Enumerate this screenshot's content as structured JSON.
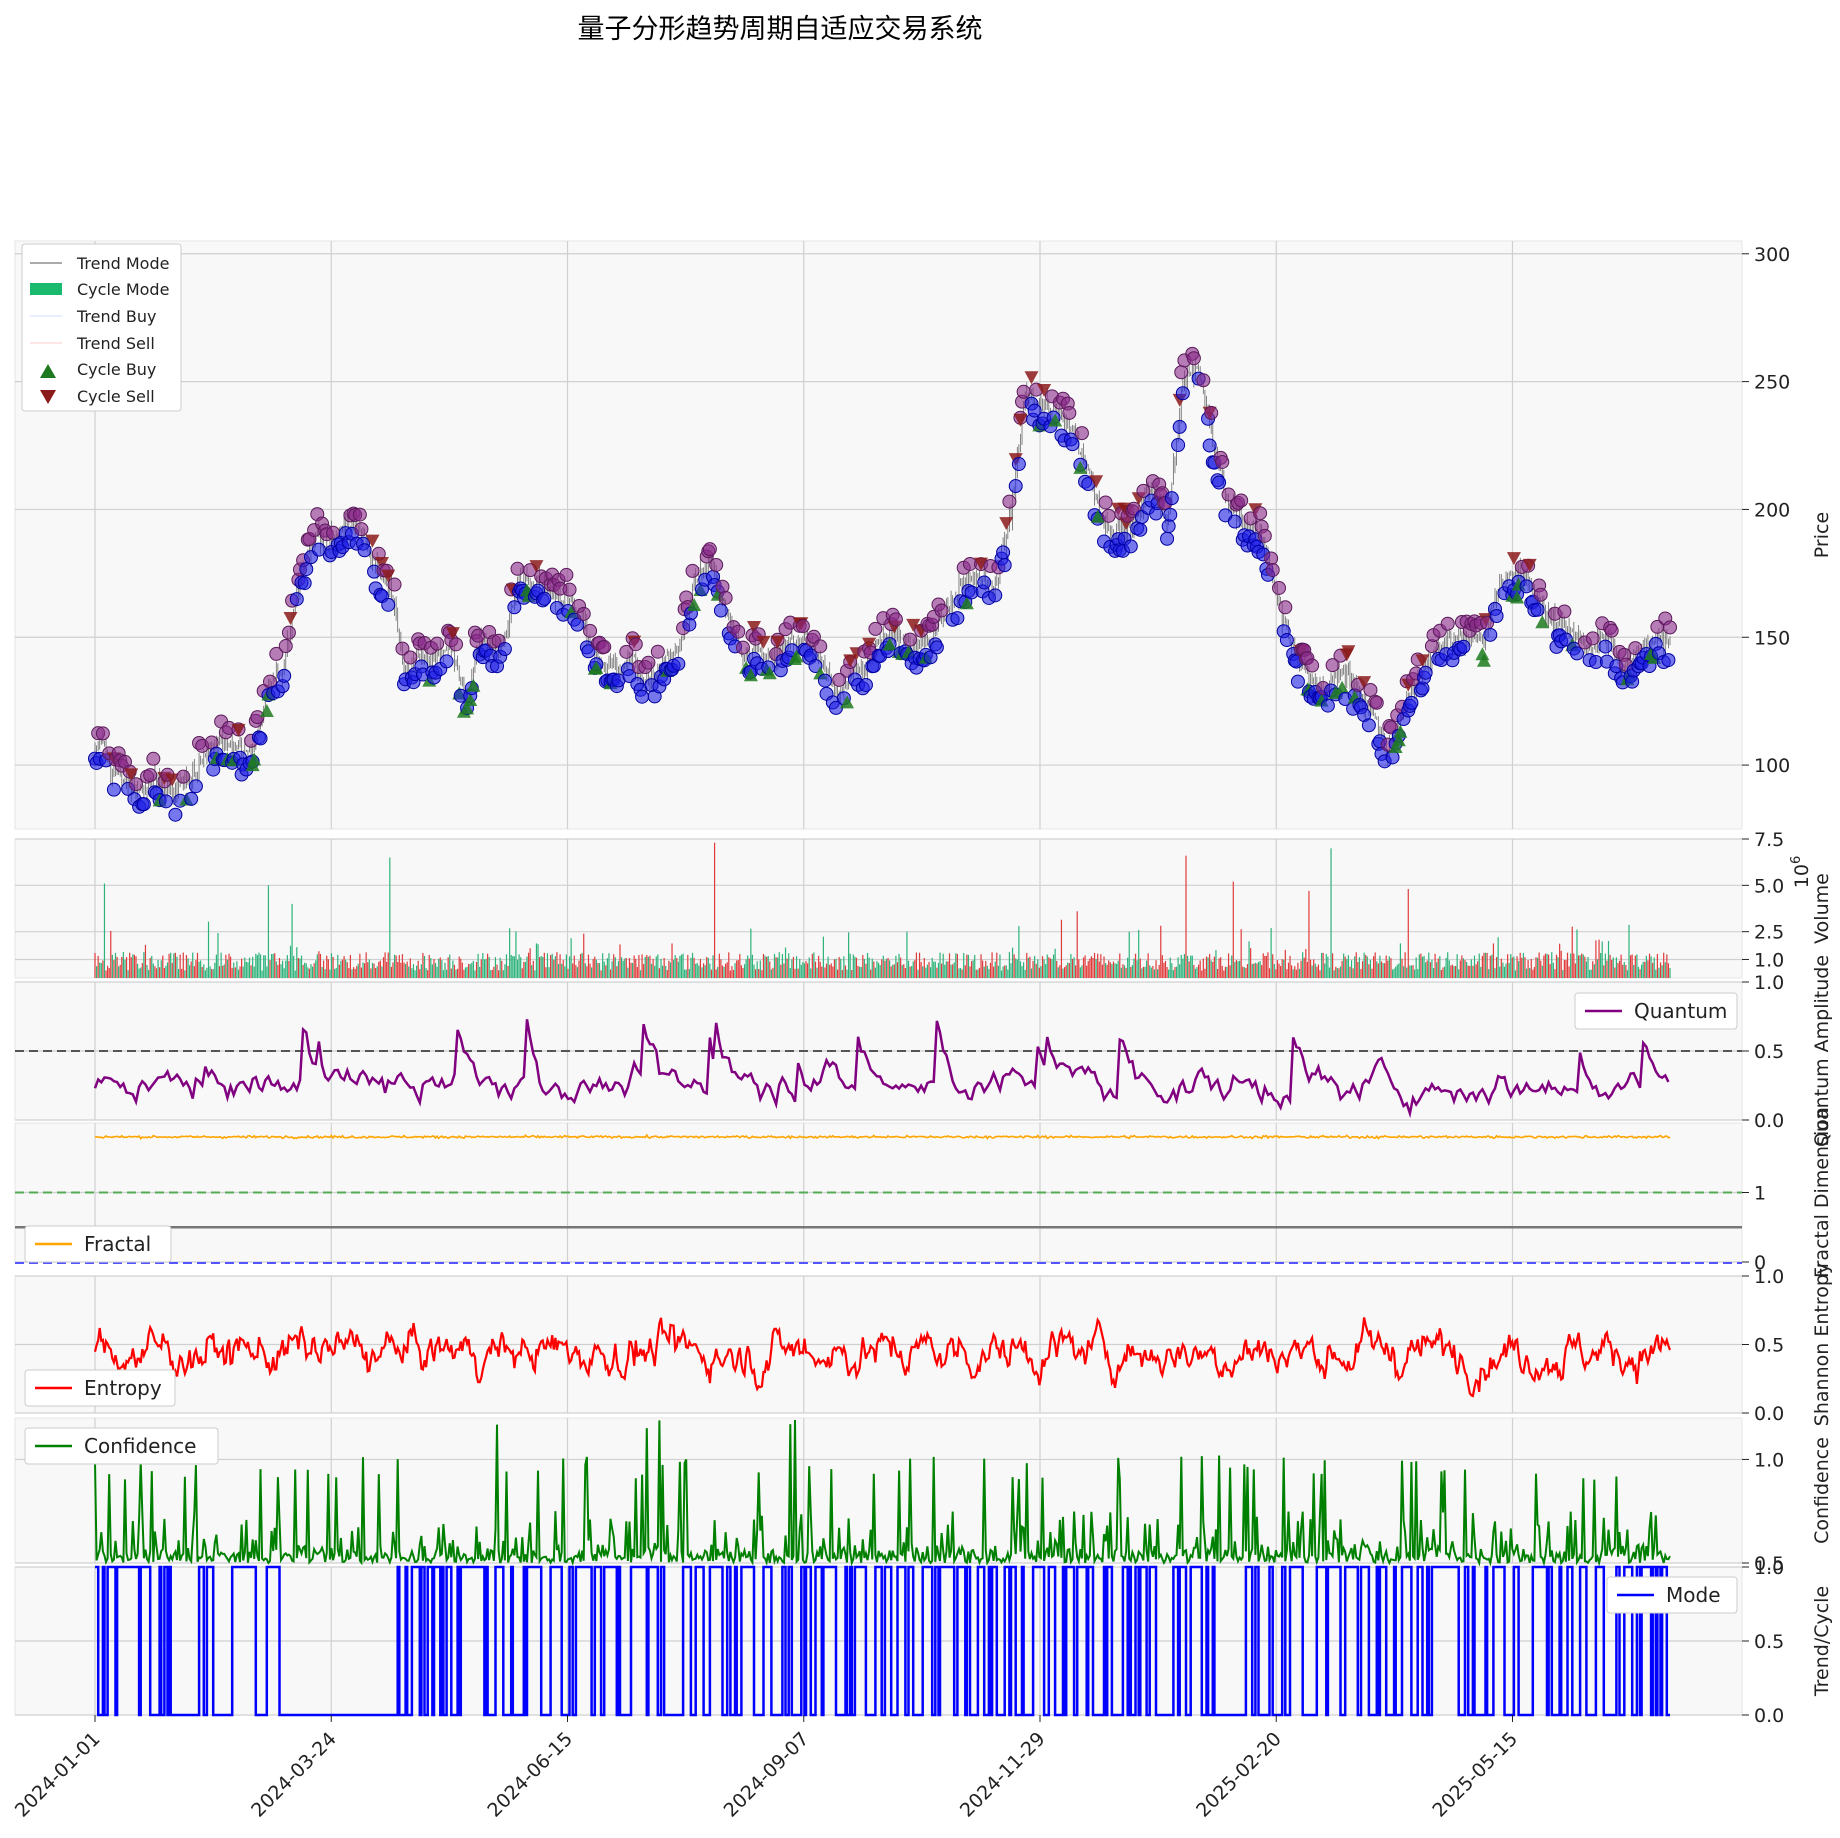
{
  "chart_data": {
    "type": "line",
    "title": "量子分形趋势周期自适应交易系统",
    "x_axis": {
      "tick_labels": [
        "2024-01-01",
        "2024-03-24",
        "2024-06-15",
        "2024-09-07",
        "2024-11-29",
        "2025-02-20",
        "2025-05-15"
      ],
      "range": [
        "2024-01-01",
        "2025-07-10"
      ]
    },
    "panels": [
      {
        "id": "price",
        "type": "candlestick+scatter",
        "ylabel": "Price",
        "ylim": [
          75,
          305
        ],
        "yticks": [
          100,
          150,
          200,
          250,
          300
        ],
        "legend": {
          "placement": "top-left",
          "entries": [
            "Trend Mode",
            "Cycle Mode",
            "Trend Buy",
            "Trend Sell",
            "Cycle Buy",
            "Cycle Sell"
          ]
        },
        "anchors": [
          [
            0,
            105
          ],
          [
            5,
            110
          ],
          [
            10,
            98
          ],
          [
            20,
            93
          ],
          [
            30,
            90
          ],
          [
            40,
            94
          ],
          [
            50,
            88
          ],
          [
            60,
            96
          ],
          [
            70,
            104
          ],
          [
            80,
            110
          ],
          [
            90,
            106
          ],
          [
            100,
            104
          ],
          [
            110,
            130
          ],
          [
            120,
            140
          ],
          [
            130,
            175
          ],
          [
            140,
            190
          ],
          [
            150,
            185
          ],
          [
            160,
            195
          ],
          [
            170,
            190
          ],
          [
            180,
            175
          ],
          [
            190,
            165
          ],
          [
            195,
            140
          ],
          [
            200,
            135
          ],
          [
            205,
            145
          ],
          [
            215,
            140
          ],
          [
            225,
            148
          ],
          [
            235,
            125
          ],
          [
            245,
            150
          ],
          [
            255,
            145
          ],
          [
            260,
            150
          ],
          [
            270,
            175
          ],
          [
            280,
            170
          ],
          [
            290,
            168
          ],
          [
            300,
            165
          ],
          [
            310,
            155
          ],
          [
            320,
            140
          ],
          [
            330,
            138
          ],
          [
            340,
            142
          ],
          [
            350,
            130
          ],
          [
            360,
            140
          ],
          [
            370,
            145
          ],
          [
            380,
            170
          ],
          [
            390,
            180
          ],
          [
            400,
            160
          ],
          [
            410,
            142
          ],
          [
            420,
            145
          ],
          [
            430,
            140
          ],
          [
            440,
            148
          ],
          [
            450,
            150
          ],
          [
            460,
            140
          ],
          [
            470,
            128
          ],
          [
            480,
            135
          ],
          [
            490,
            140
          ],
          [
            500,
            150
          ],
          [
            510,
            152
          ],
          [
            520,
            145
          ],
          [
            530,
            150
          ],
          [
            540,
            160
          ],
          [
            550,
            170
          ],
          [
            560,
            175
          ],
          [
            570,
            168
          ],
          [
            580,
            195
          ],
          [
            590,
            245
          ],
          [
            600,
            240
          ],
          [
            610,
            238
          ],
          [
            620,
            232
          ],
          [
            630,
            215
          ],
          [
            640,
            195
          ],
          [
            650,
            190
          ],
          [
            660,
            195
          ],
          [
            670,
            210
          ],
          [
            680,
            195
          ],
          [
            690,
            250
          ],
          [
            700,
            255
          ],
          [
            710,
            225
          ],
          [
            720,
            200
          ],
          [
            730,
            195
          ],
          [
            740,
            190
          ],
          [
            750,
            165
          ],
          [
            760,
            145
          ],
          [
            770,
            135
          ],
          [
            780,
            128
          ],
          [
            790,
            138
          ],
          [
            800,
            130
          ],
          [
            810,
            120
          ],
          [
            820,
            105
          ],
          [
            830,
            122
          ],
          [
            840,
            135
          ],
          [
            850,
            145
          ],
          [
            860,
            150
          ],
          [
            870,
            150
          ],
          [
            880,
            148
          ],
          [
            890,
            170
          ],
          [
            900,
            175
          ],
          [
            910,
            172
          ],
          [
            920,
            160
          ],
          [
            930,
            155
          ],
          [
            940,
            150
          ],
          [
            950,
            145
          ],
          [
            960,
            150
          ],
          [
            970,
            135
          ],
          [
            980,
            145
          ],
          [
            990,
            150
          ]
        ],
        "n_points": 1000
      },
      {
        "id": "volume",
        "type": "bar",
        "ylabel": "Volume",
        "offset_label": "1e6",
        "ylim": [
          0,
          7.5
        ],
        "yticks": [
          1.0,
          2.5,
          5.0,
          7.5
        ],
        "spikes": [
          [
            6,
            5.1
          ],
          [
            110,
            5.0
          ],
          [
            125,
            4.0
          ],
          [
            187,
            6.5
          ],
          [
            393,
            7.3
          ],
          [
            515,
            2.5
          ],
          [
            586,
            2.8
          ],
          [
            623,
            3.6
          ],
          [
            692,
            6.6
          ],
          [
            722,
            5.2
          ],
          [
            770,
            4.7
          ],
          [
            784,
            7.0
          ],
          [
            833,
            4.8
          ],
          [
            890,
            2.2
          ],
          [
            960,
            2.0
          ]
        ]
      },
      {
        "id": "quantum",
        "type": "line",
        "ylabel": "Quantum Amplitude",
        "ylim": [
          0,
          1
        ],
        "yticks": [
          0.0,
          0.5,
          1.0
        ],
        "reference_line": 0.5,
        "legend": {
          "placement": "top-right",
          "entries": [
            "Quantum"
          ]
        },
        "series": [
          {
            "name": "Quantum",
            "mean": 0.25,
            "range": [
              0.0,
              1.0
            ]
          }
        ]
      },
      {
        "id": "fractal",
        "type": "line",
        "ylabel": "Fractal Dimension",
        "ylim": [
          0,
          2
        ],
        "yticks": [
          0,
          1
        ],
        "reference_lines": [
          1.0,
          1.5,
          0
        ],
        "legend": {
          "placement": "bottom-left",
          "entries": [
            "Fractal"
          ]
        },
        "series": [
          {
            "name": "Fractal",
            "mean": 1.8,
            "range": [
              1.76,
              1.84
            ]
          }
        ]
      },
      {
        "id": "entropy",
        "type": "line",
        "ylabel": "Shannon Entropy",
        "ylim": [
          0,
          1
        ],
        "yticks": [
          0.0,
          0.5,
          1.0
        ],
        "legend": {
          "placement": "bottom-left",
          "entries": [
            "Entropy"
          ]
        },
        "series": [
          {
            "name": "Entropy",
            "mean": 0.45,
            "range": [
              0.0,
              1.0
            ]
          }
        ]
      },
      {
        "id": "confidence",
        "type": "line",
        "ylabel": "Confidence",
        "ylim": [
          0.5,
          1.2
        ],
        "yticks": [
          0.5,
          1.0
        ],
        "legend": {
          "placement": "top-left",
          "entries": [
            "Confidence"
          ]
        },
        "series": [
          {
            "name": "Confidence",
            "baseline": 0.5,
            "range": [
              0.5,
              1.2
            ]
          }
        ]
      },
      {
        "id": "mode",
        "type": "step",
        "ylabel": "Trend/Cycle",
        "ylim": [
          0,
          1
        ],
        "yticks": [
          0.0,
          0.5,
          1.0
        ],
        "legend": {
          "placement": "top-right",
          "entries": [
            "Mode"
          ]
        },
        "series": [
          {
            "name": "Mode",
            "values": [
              0,
              1
            ]
          }
        ],
        "flat_zero_period": [
          "2024-03-01",
          "2024-04-29"
        ]
      }
    ],
    "colors": {
      "up": "#2db37a",
      "down": "#e03b3b",
      "blue_marker": "#1f1fe6",
      "purple_marker": "#8a2a8a",
      "cycle_buy": "#1f7a1f",
      "cycle_sell": "#8b1a1a",
      "quantum": "#800080",
      "fractal": "#ffa500",
      "entropy": "#ff0000",
      "confidence": "#008000",
      "mode": "#0000ff",
      "grid": "#d0d0d0",
      "panel_bg": "#f8f8f8"
    }
  }
}
